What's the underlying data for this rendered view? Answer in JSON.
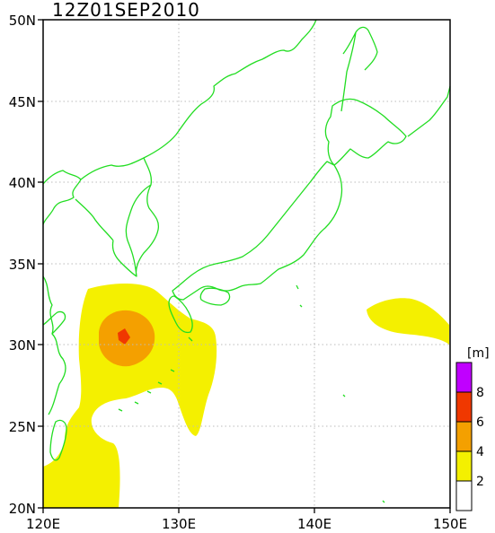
{
  "title": "12Z01SEP2010",
  "axes": {
    "lon_ticks": [
      "120E",
      "130E",
      "140E",
      "150E"
    ],
    "lat_ticks": [
      "50N",
      "45N",
      "40N",
      "35N",
      "30N",
      "25N",
      "20N"
    ],
    "lon_range": [
      120,
      150
    ],
    "lat_range": [
      20,
      50
    ],
    "grid": "dotted"
  },
  "legend": {
    "unit": "[m]",
    "labels": [
      "8",
      "6",
      "4",
      "2"
    ],
    "colors": [
      "#ffffff",
      "#f4f000",
      "#f4a000",
      "#f03800",
      "#c000ff"
    ]
  },
  "colors": {
    "coastline": "#22dd22",
    "grid": "#bbbbbb"
  }
}
